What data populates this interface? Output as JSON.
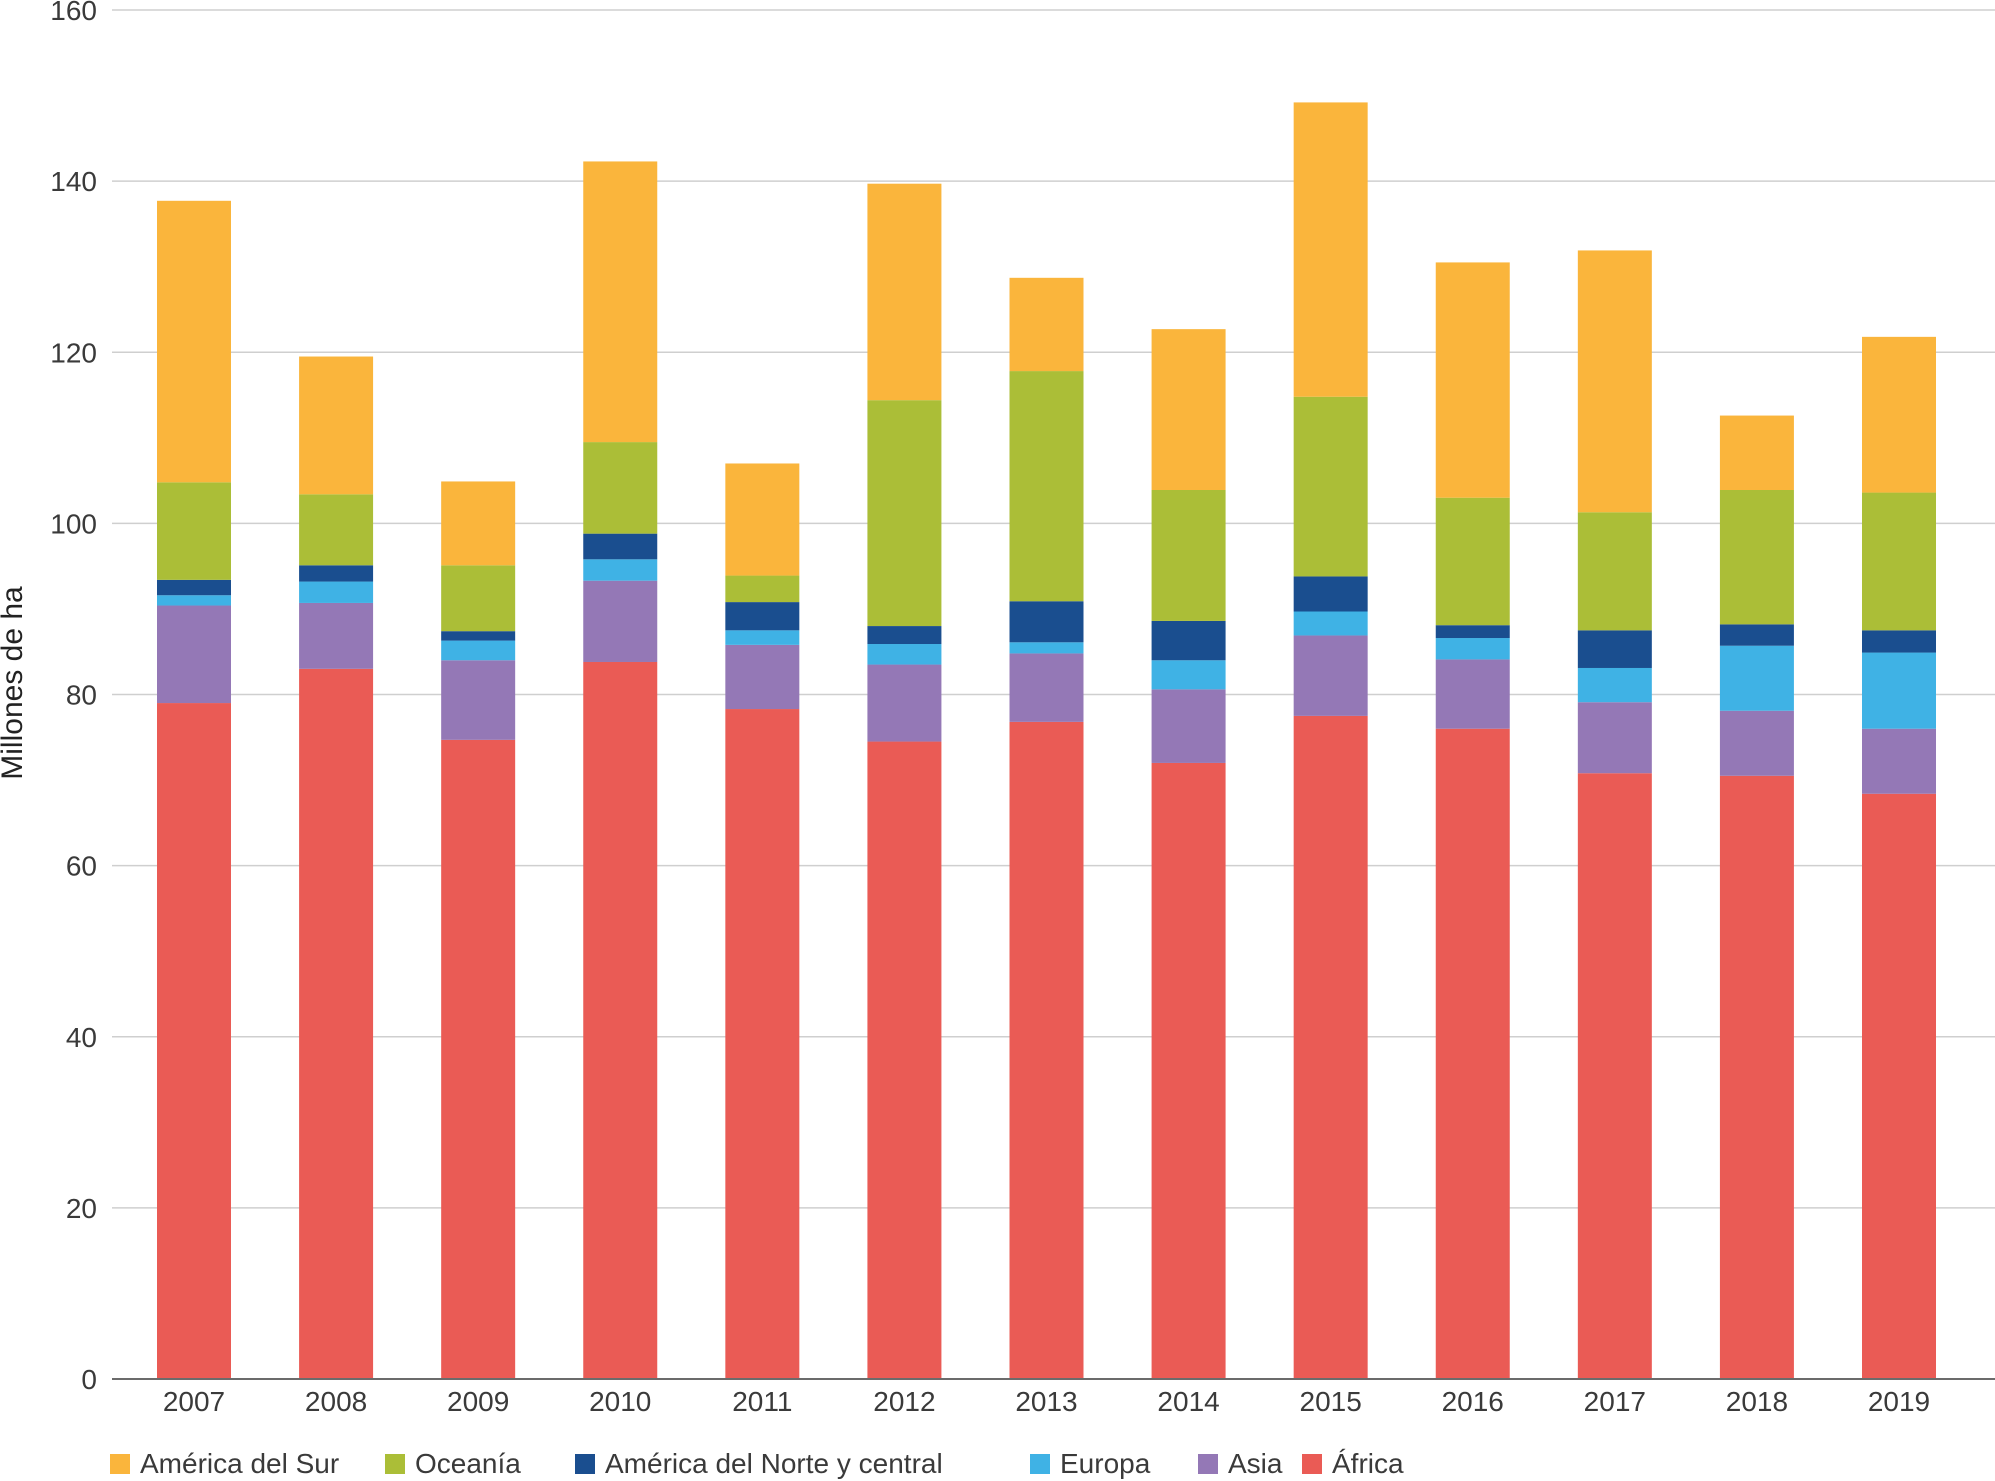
{
  "chart_data": {
    "type": "bar",
    "stacked": true,
    "title": "",
    "xlabel": "",
    "ylabel": "Millones de ha",
    "ylim": [
      0,
      160
    ],
    "yticks": [
      0,
      20,
      40,
      60,
      80,
      100,
      120,
      140,
      160
    ],
    "grid": true,
    "legend_position": "bottom-left",
    "categories": [
      "2007",
      "2008",
      "2009",
      "2010",
      "2011",
      "2012",
      "2013",
      "2014",
      "2015",
      "2016",
      "2017",
      "2018",
      "2019"
    ],
    "series": [
      {
        "name": "África",
        "color": "#ea5b55",
        "values": [
          79,
          83,
          74.7,
          83.8,
          78.3,
          74.5,
          76.8,
          72,
          77.5,
          76,
          70.8,
          70.5,
          68.4
        ]
      },
      {
        "name": "Asia",
        "color": "#9478b6",
        "values": [
          11.4,
          7.7,
          9.3,
          9.5,
          7.5,
          9,
          8,
          8.6,
          9.4,
          8.1,
          8.3,
          7.6,
          7.6
        ]
      },
      {
        "name": "Europa",
        "color": "#3fb2e5",
        "values": [
          1.2,
          2.5,
          2.3,
          2.5,
          1.7,
          2.4,
          1.3,
          3.4,
          2.8,
          2.5,
          4,
          7.6,
          8.9
        ]
      },
      {
        "name": "América del Norte y central",
        "color": "#1a4e8f",
        "values": [
          1.8,
          1.9,
          1.1,
          3,
          3.3,
          2.1,
          4.8,
          4.6,
          4.1,
          1.5,
          4.4,
          2.5,
          2.6
        ]
      },
      {
        "name": "Oceanía",
        "color": "#abbe37",
        "values": [
          11.4,
          8.3,
          7.7,
          10.7,
          3.1,
          26.4,
          26.9,
          15.3,
          21,
          14.9,
          13.8,
          15.7,
          16.1
        ]
      },
      {
        "name": "América del Sur",
        "color": "#fab53c",
        "values": [
          32.9,
          16.1,
          9.8,
          32.8,
          13.1,
          25.3,
          10.9,
          18.8,
          34.4,
          27.5,
          30.6,
          8.7,
          18.2
        ]
      }
    ],
    "legend_order": [
      "América del Sur",
      "Oceanía",
      "América del Norte y central",
      "Europa",
      "Asia",
      "África"
    ]
  }
}
